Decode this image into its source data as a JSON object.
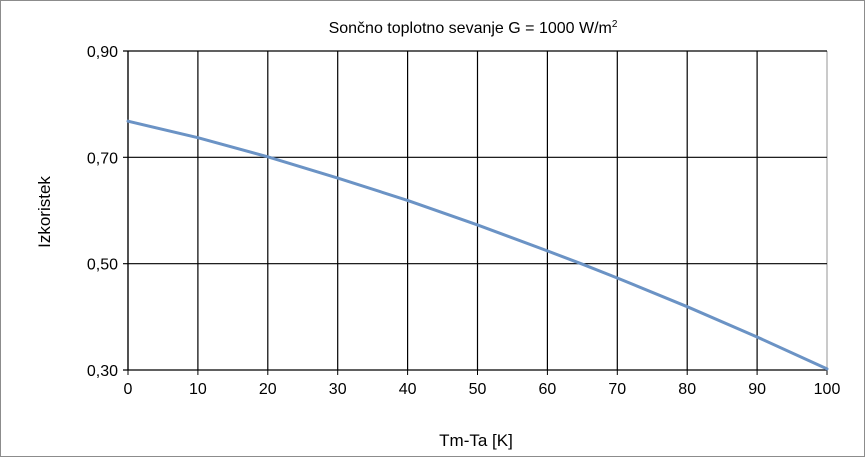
{
  "chart_data": {
    "type": "line",
    "title": "Sončno toplotno sevanje G = 1000 W/m",
    "title_superscript": "2",
    "xlabel": "Tm-Ta [K]",
    "ylabel": "Izkoristek",
    "xlim": [
      0,
      100
    ],
    "ylim": [
      0.3,
      0.9
    ],
    "x_ticks": [
      "0",
      "10",
      "20",
      "30",
      "40",
      "50",
      "60",
      "70",
      "80",
      "90",
      "100"
    ],
    "y_ticks": [
      "0,30",
      "0,50",
      "0,70",
      "0,90"
    ],
    "grid": true,
    "legend": "none",
    "series": [
      {
        "x": [
          0,
          10,
          20,
          30,
          40,
          50,
          60,
          65,
          70,
          80,
          90,
          100
        ],
        "y": [
          0.768,
          0.737,
          0.701,
          0.661,
          0.619,
          0.573,
          0.524,
          0.499,
          0.473,
          0.419,
          0.362,
          0.302
        ],
        "color": "#6b93c5"
      }
    ]
  }
}
